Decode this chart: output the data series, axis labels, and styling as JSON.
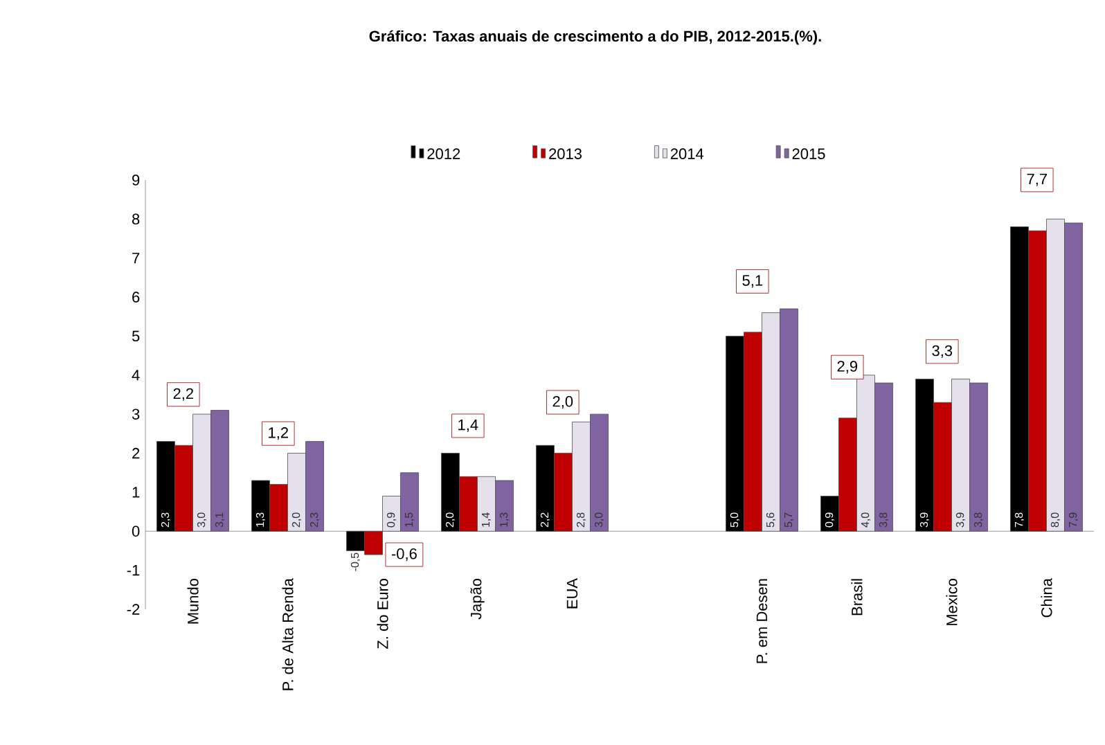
{
  "chart_data": {
    "type": "bar",
    "title": "Gráfico: Taxas anuais de crescimento a do PIB, 2012-2015.(%).",
    "categories": [
      "Mundo",
      "P. de Alta Renda",
      "Z. do Euro",
      "Japão",
      "EUA",
      null,
      "P. em Desen",
      "Brasil",
      "Mexico",
      "China"
    ],
    "series": [
      {
        "name": "2012",
        "color": "#000000",
        "values": [
          2.3,
          1.3,
          -0.5,
          2.0,
          2.2,
          null,
          5.0,
          0.9,
          3.9,
          7.8
        ],
        "value_labels": [
          "2,3",
          "1,3",
          "-0,5",
          "2,0",
          "2,2",
          null,
          "5,0",
          "0,9",
          "3,9",
          "7,8"
        ]
      },
      {
        "name": "2013",
        "color": "#c00000",
        "values": [
          2.2,
          1.2,
          -0.6,
          1.4,
          2.0,
          null,
          5.1,
          2.9,
          3.3,
          7.7
        ]
      },
      {
        "name": "2014",
        "color": "#e4e1ec",
        "values": [
          3.0,
          2.0,
          0.9,
          1.4,
          2.8,
          null,
          5.6,
          4.0,
          3.9,
          8.0
        ],
        "value_labels": [
          "3,0",
          "2,0",
          "0,9",
          "1,4",
          "2,8",
          null,
          "5,6",
          "4,0",
          "3,9",
          "8,0"
        ]
      },
      {
        "name": "2015",
        "color": "#8064a2",
        "values": [
          3.1,
          2.3,
          1.5,
          1.3,
          3.0,
          null,
          5.7,
          3.8,
          3.8,
          7.9
        ],
        "value_labels": [
          "3,1",
          "2,3",
          "1,5",
          "1,3",
          "3,0",
          null,
          "5,7",
          "3,8",
          "3,8",
          "7,9"
        ]
      }
    ],
    "annotations": [
      {
        "text": "2,2",
        "x": "Mundo",
        "y": 2.2
      },
      {
        "text": "1,2",
        "x": "P. de Alta Renda",
        "y": 1.2
      },
      {
        "text": "-0,6",
        "x": "Z. do Euro",
        "y": -0.6
      },
      {
        "text": "1,4",
        "x": "Japão",
        "y": 1.4
      },
      {
        "text": "2,0",
        "x": "EUA",
        "y": 2.0
      },
      {
        "text": "5,1",
        "x": "P. em Desen",
        "y": 5.1
      },
      {
        "text": "2,9",
        "x": "Brasil",
        "y": 2.9
      },
      {
        "text": "3,3",
        "x": "Mexico",
        "y": 3.3
      },
      {
        "text": "7,7",
        "x": "China",
        "y": 7.7
      }
    ],
    "ylim": [
      -2,
      9
    ],
    "yticks": [
      -2,
      -1,
      0,
      1,
      2,
      3,
      4,
      5,
      6,
      7,
      8,
      9
    ],
    "legend": "top"
  }
}
